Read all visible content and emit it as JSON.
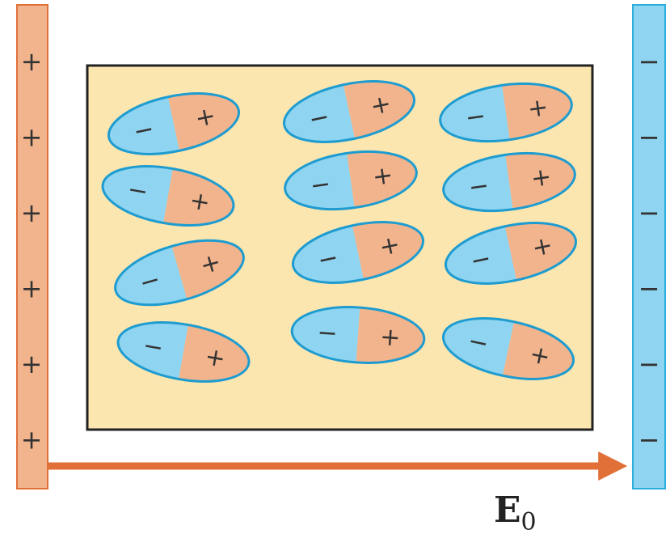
{
  "colors": {
    "positive_plate": "#F2B48C",
    "positive_plate_stroke": "#E0703A",
    "negative_plate": "#8FD4F0",
    "negative_plate_stroke": "#2AAEDC",
    "dielectric": "#FCE6B0",
    "dielectric_border": "#222222",
    "dipole_negative": "#8FD4F0",
    "dipole_positive": "#F2B48C",
    "dipole_stroke": "#1E9CD0",
    "field_arrow": "#E07038"
  },
  "plates": {
    "positive": {
      "sign": "+",
      "count": 6
    },
    "negative": {
      "sign": "−",
      "count": 6
    }
  },
  "dipoles": {
    "negative_sign": "−",
    "positive_sign": "+",
    "tilt_deg": [
      -12,
      -12,
      -8,
      10,
      -8,
      -8,
      -16,
      -12,
      -12,
      10,
      4,
      12
    ]
  },
  "field": {
    "symbol": "E",
    "subscript": "0"
  }
}
